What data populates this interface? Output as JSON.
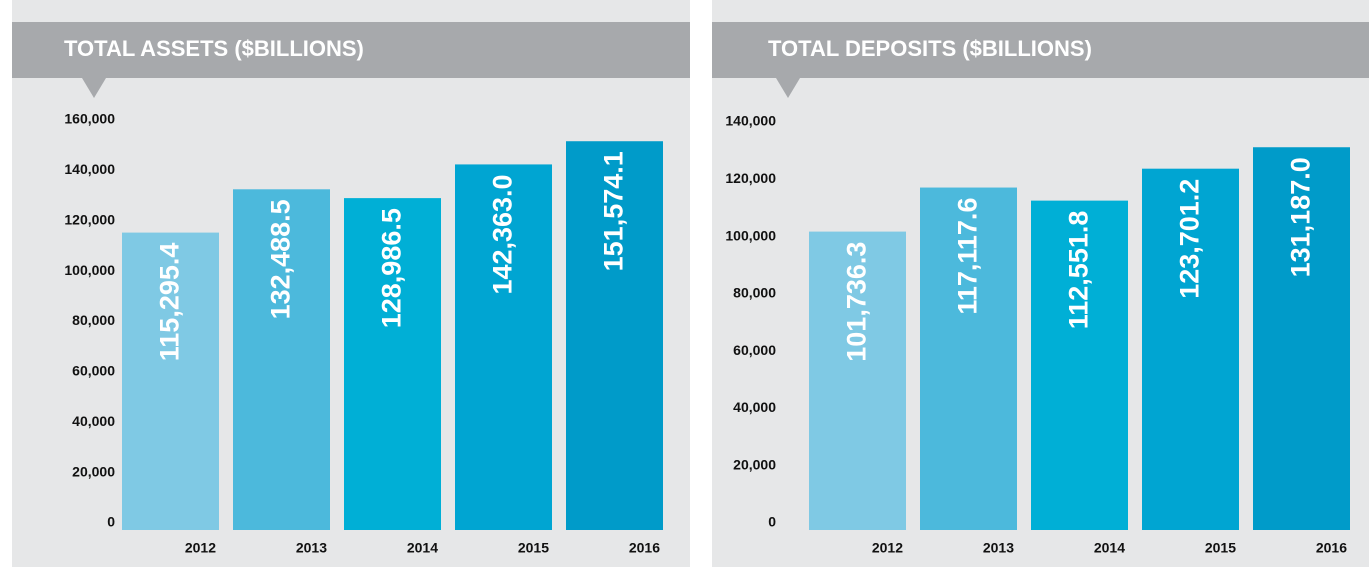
{
  "chart_data": [
    {
      "type": "bar",
      "title": "TOTAL ASSETS ($BILLIONS)",
      "categories": [
        "2012",
        "2013",
        "2014",
        "2015",
        "2016"
      ],
      "values": [
        115295.4,
        132488.5,
        128986.5,
        142363.0,
        151574.1
      ],
      "value_labels": [
        "115,295.4",
        "132,488.5",
        "128,986.5",
        "142,363.0",
        "151,574.1"
      ],
      "colors": [
        "#7fc9e4",
        "#4cb9dc",
        "#00afd6",
        "#00a5d2",
        "#009bc9"
      ],
      "ylim": [
        0,
        160000
      ],
      "yticks": [
        0,
        {
          "value": 20000,
          "label": "20,000"
        },
        {
          "value": 40000,
          "label": "40,000"
        },
        {
          "value": 60000,
          "label": "60,000"
        },
        {
          "value": 80000,
          "label": "80,000"
        },
        {
          "value": 100000,
          "label": "100,000"
        },
        {
          "value": 120000,
          "label": "120,000"
        },
        {
          "value": 140000,
          "label": "140,000"
        },
        {
          "value": 160000,
          "label": "160,000"
        }
      ]
    },
    {
      "type": "bar",
      "title": "TOTAL DEPOSITS ($BILLIONS)",
      "categories": [
        "2012",
        "2013",
        "2014",
        "2015",
        "2016"
      ],
      "values": [
        101736.3,
        117117.6,
        112551.8,
        123701.2,
        131187.0
      ],
      "value_labels": [
        "101,736.3",
        "117,117.6",
        "112,551.8",
        "123,701.2",
        "131,187.0"
      ],
      "colors": [
        "#7fc9e4",
        "#4cb9dc",
        "#00afd6",
        "#00a5d2",
        "#009bc9"
      ],
      "ylim": [
        0,
        140000
      ],
      "yticks": [
        0,
        {
          "value": 20000,
          "label": "20,000"
        },
        {
          "value": 40000,
          "label": "40,000"
        },
        {
          "value": 60000,
          "label": "60,000"
        },
        {
          "value": 80000,
          "label": "80,000"
        },
        {
          "value": 100000,
          "label": "100,000"
        },
        {
          "value": 120000,
          "label": "120,000"
        },
        {
          "value": 140000,
          "label": "140,000"
        }
      ]
    }
  ]
}
